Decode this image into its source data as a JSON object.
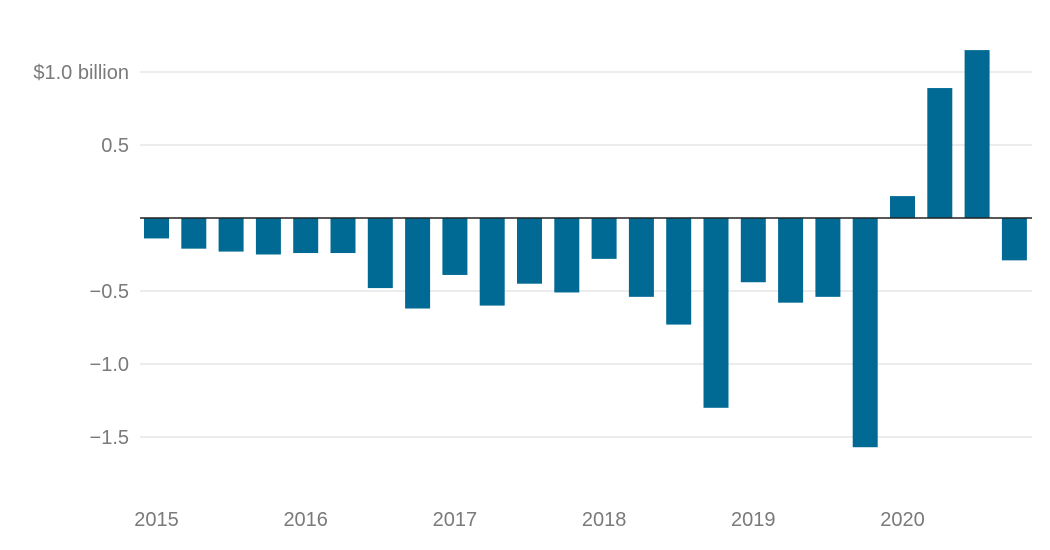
{
  "chart_data": {
    "type": "bar",
    "categories": [
      "2015 Q1",
      "2015 Q2",
      "2015 Q3",
      "2015 Q4",
      "2016 Q1",
      "2016 Q2",
      "2016 Q3",
      "2016 Q4",
      "2017 Q1",
      "2017 Q2",
      "2017 Q3",
      "2017 Q4",
      "2018 Q1",
      "2018 Q2",
      "2018 Q3",
      "2018 Q4",
      "2019 Q1",
      "2019 Q2",
      "2019 Q3",
      "2019 Q4",
      "2020 Q1",
      "2020 Q2",
      "2020 Q3",
      "2020 Q4"
    ],
    "values": [
      -0.14,
      -0.21,
      -0.23,
      -0.25,
      -0.24,
      -0.24,
      -0.48,
      -0.62,
      -0.39,
      -0.6,
      -0.45,
      -0.51,
      -0.28,
      -0.54,
      -0.73,
      -1.3,
      -0.44,
      -0.58,
      -0.54,
      -1.57,
      0.15,
      0.89,
      1.15,
      -0.29
    ],
    "ylim": [
      -1.75,
      1.15
    ],
    "yticks": [
      {
        "value": 1.0,
        "label": "$1.0 billion"
      },
      {
        "value": 0.5,
        "label": "0.5"
      },
      {
        "value": -0.5,
        "label": "−0.5"
      },
      {
        "value": -1.0,
        "label": "−1.0"
      },
      {
        "value": -1.5,
        "label": "−1.5"
      }
    ],
    "xticks": [
      {
        "index": 0,
        "label": "2015"
      },
      {
        "index": 4,
        "label": "2016"
      },
      {
        "index": 8,
        "label": "2017"
      },
      {
        "index": 12,
        "label": "2018"
      },
      {
        "index": 16,
        "label": "2019"
      },
      {
        "index": 20,
        "label": "2020"
      }
    ],
    "title": "",
    "xlabel": "",
    "ylabel": "",
    "grid": true,
    "legend": "none",
    "bar_color": "#006a94"
  }
}
